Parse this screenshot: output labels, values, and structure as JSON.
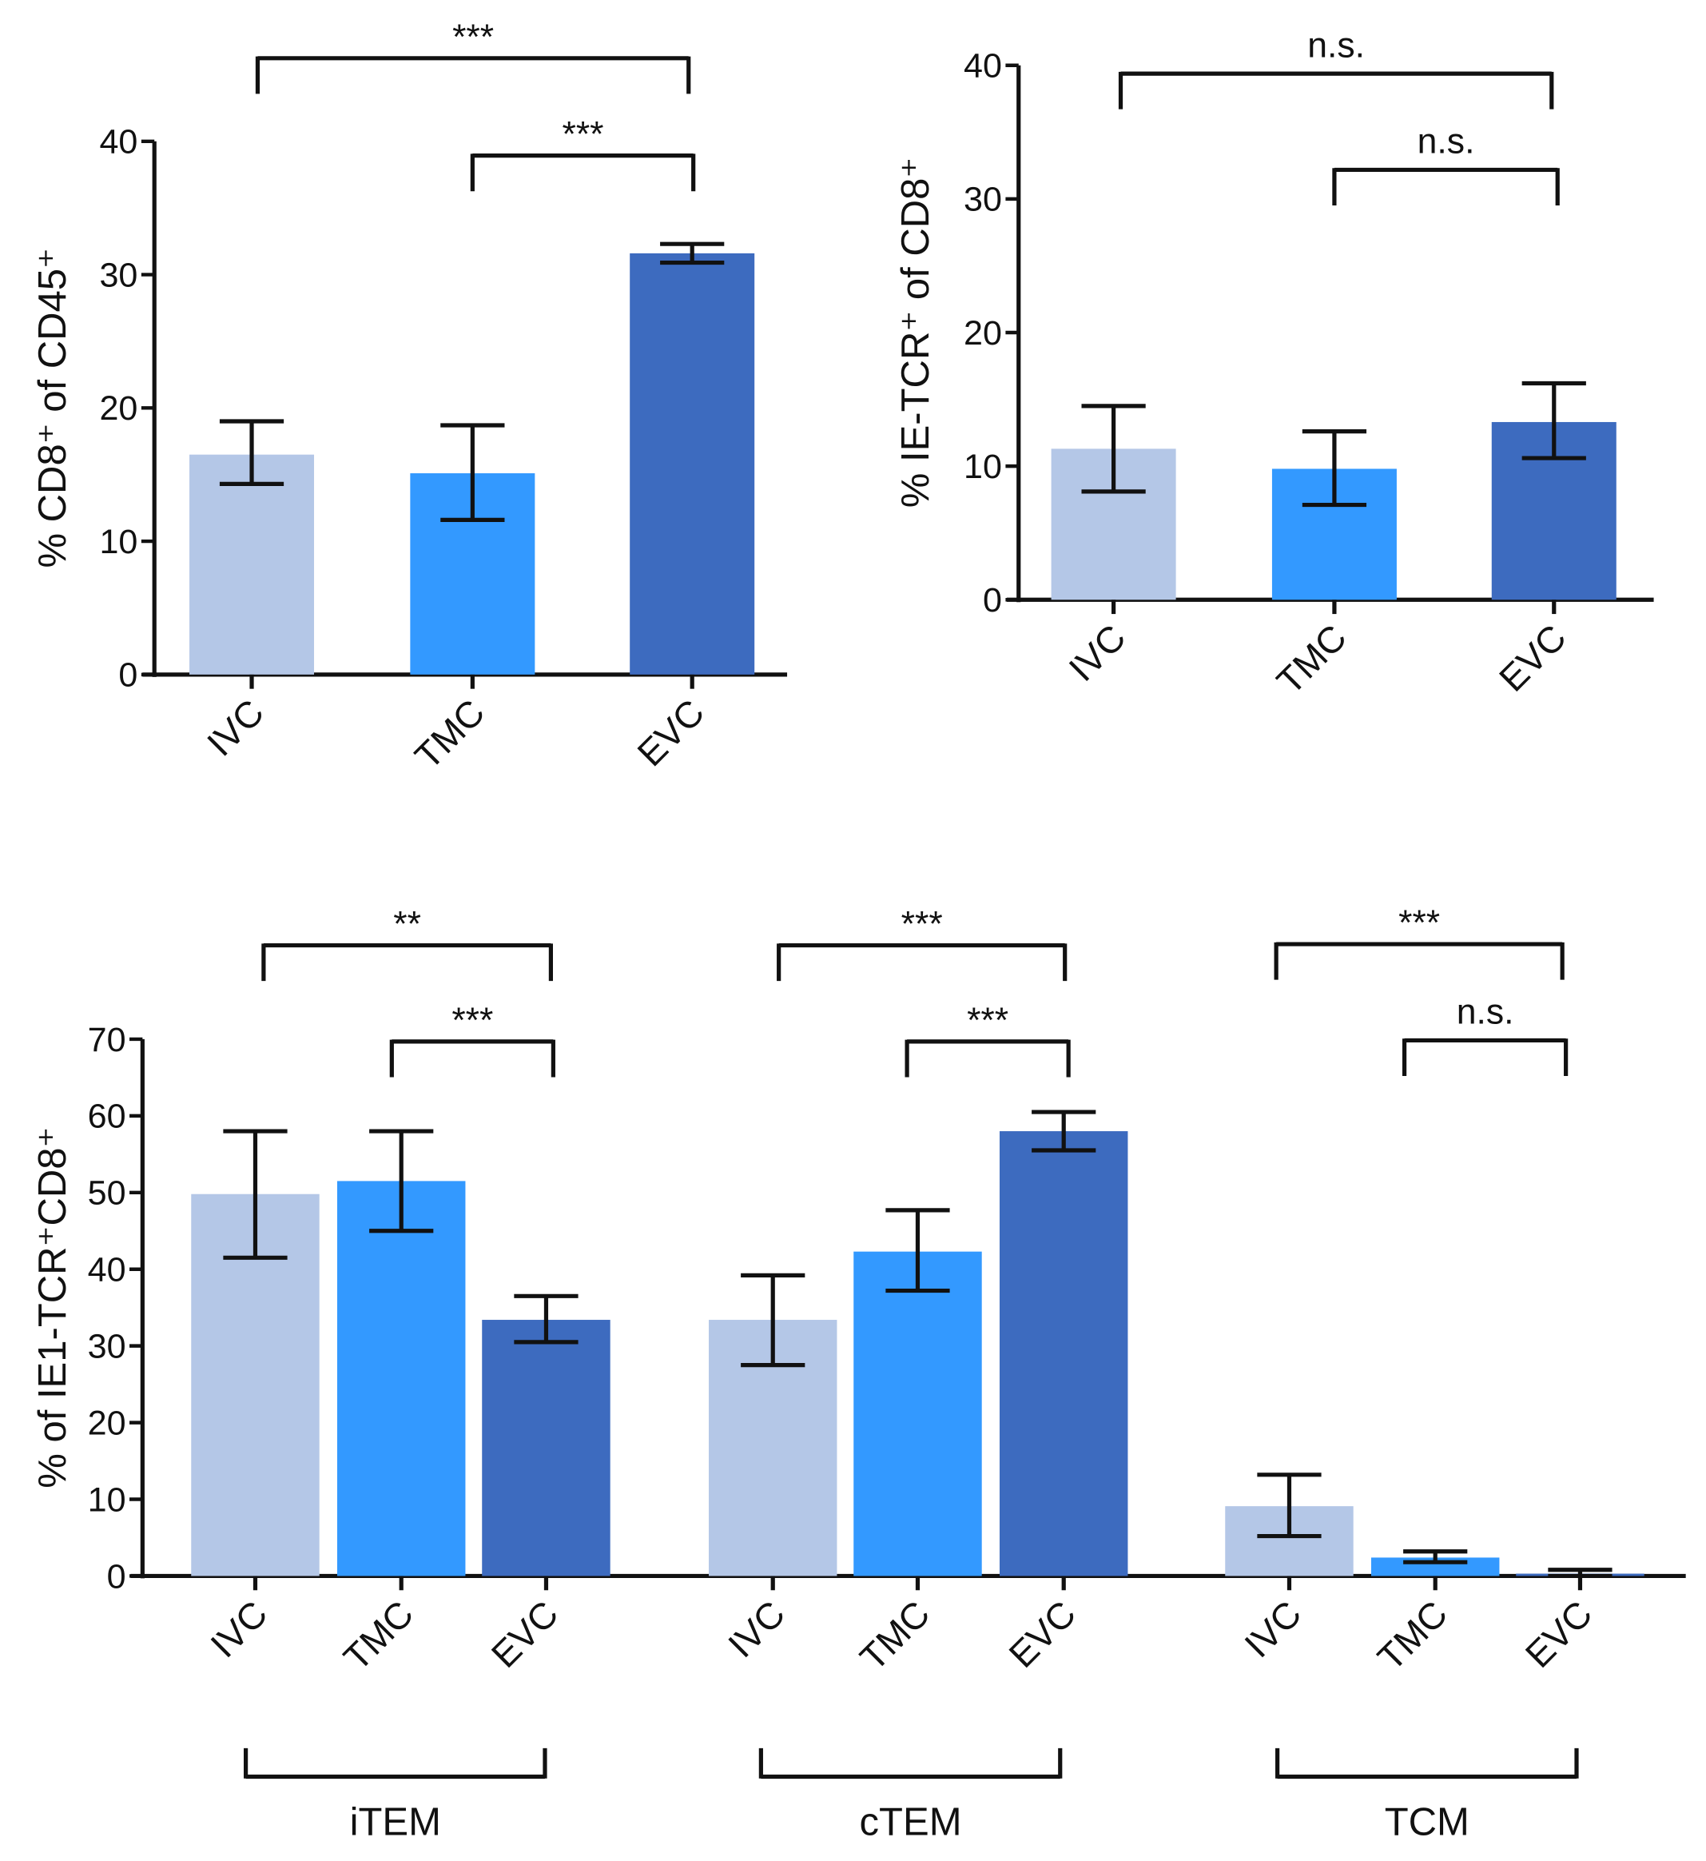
{
  "colors": {
    "IVC": "#b4c7e7",
    "TMC": "#3399ff",
    "EVC": "#3d6bbf",
    "axis": "#111111"
  },
  "chart_data": [
    {
      "type": "bar",
      "ylabel": "% CD8⁺ of CD45⁺",
      "ylim": [
        0,
        40
      ],
      "yticks": [
        "0",
        "10",
        "20",
        "30",
        "40"
      ],
      "categories": [
        "IVC",
        "TMC",
        "EVC"
      ],
      "values": [
        16.5,
        15.1,
        31.6
      ],
      "error_low": [
        14.3,
        11.6,
        30.9
      ],
      "error_high": [
        19.0,
        18.7,
        32.3
      ],
      "significance": [
        {
          "from": "IVC",
          "to": "EVC",
          "label": "***"
        },
        {
          "from": "TMC",
          "to": "EVC",
          "label": "***"
        }
      ]
    },
    {
      "type": "bar",
      "ylabel": "% IE-TCR⁺ of CD8⁺",
      "ylim": [
        0,
        40
      ],
      "yticks": [
        "0",
        "10",
        "20",
        "30",
        "40"
      ],
      "categories": [
        "IVC",
        "TMC",
        "EVC"
      ],
      "values": [
        11.3,
        9.8,
        13.3
      ],
      "error_low": [
        8.1,
        7.1,
        10.6
      ],
      "error_high": [
        14.5,
        12.6,
        16.2
      ],
      "significance": [
        {
          "from": "IVC",
          "to": "EVC",
          "label": "n.s."
        },
        {
          "from": "TMC",
          "to": "EVC",
          "label": "n.s."
        }
      ]
    },
    {
      "type": "bar",
      "ylabel": "% of IE1-TCR⁺CD8⁺",
      "ylim": [
        0,
        70
      ],
      "yticks": [
        "0",
        "10",
        "20",
        "30",
        "40",
        "50",
        "60",
        "70"
      ],
      "groups": [
        {
          "name": "iTEM",
          "categories": [
            "IVC",
            "TMC",
            "EVC"
          ],
          "values": [
            49.8,
            51.5,
            33.4
          ],
          "error_low": [
            41.5,
            45.0,
            30.5
          ],
          "error_high": [
            58.0,
            58.0,
            36.5
          ],
          "significance": [
            {
              "from": "IVC",
              "to": "EVC",
              "label": "**"
            },
            {
              "from": "TMC",
              "to": "EVC",
              "label": "***"
            }
          ]
        },
        {
          "name": "cTEM",
          "categories": [
            "IVC",
            "TMC",
            "EVC"
          ],
          "values": [
            33.4,
            42.3,
            58.0
          ],
          "error_low": [
            27.5,
            37.2,
            55.5
          ],
          "error_high": [
            39.2,
            47.7,
            60.5
          ],
          "significance": [
            {
              "from": "IVC",
              "to": "EVC",
              "label": "***"
            },
            {
              "from": "TMC",
              "to": "EVC",
              "label": "***"
            }
          ]
        },
        {
          "name": "TCM",
          "categories": [
            "IVC",
            "TMC",
            "EVC"
          ],
          "values": [
            9.1,
            2.4,
            0.3
          ],
          "error_low": [
            5.2,
            1.8,
            0.0
          ],
          "error_high": [
            13.2,
            3.2,
            0.8
          ],
          "significance": [
            {
              "from": "IVC",
              "to": "EVC",
              "label": "***"
            },
            {
              "from": "TMC",
              "to": "EVC",
              "label": "n.s."
            }
          ]
        }
      ]
    }
  ]
}
